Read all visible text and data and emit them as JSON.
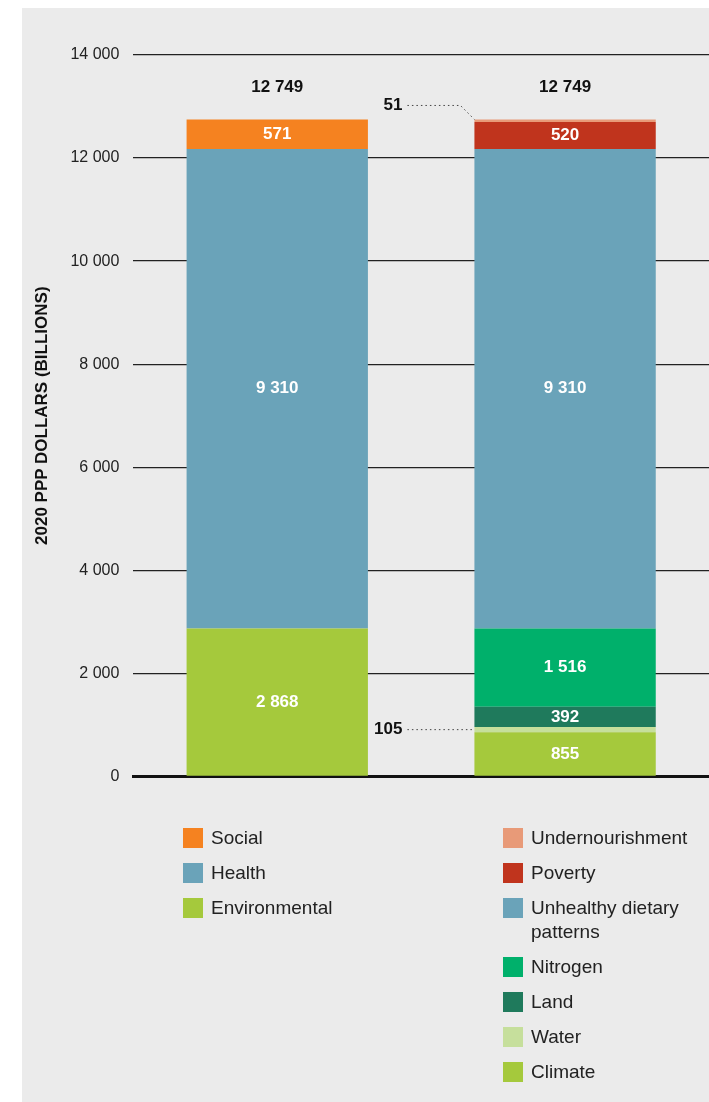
{
  "chart_data": {
    "type": "bar",
    "stacked": true,
    "ylabel": "2020 PPP DOLLARS (BILLIONS)",
    "categories": [
      null,
      null
    ],
    "ylim": [
      0,
      14000
    ],
    "yticks": [
      0,
      {
        "value": 2000,
        "label": "2 000"
      },
      {
        "value": 4000,
        "label": "4 000"
      },
      {
        "value": 6000,
        "label": "6 000"
      },
      {
        "value": 8000,
        "label": "8 000"
      },
      {
        "value": 10000,
        "label": "10 000"
      },
      {
        "value": 12000,
        "label": "12 000"
      },
      {
        "value": 14000,
        "label": "14 000"
      }
    ],
    "grid": "y",
    "legend": "bottom",
    "totals": [
      "12 749",
      "12 749"
    ],
    "series": [
      {
        "name": "Environmental",
        "color": "#a5c93c",
        "values": [
          2868,
          null
        ],
        "value_labels": [
          "2 868",
          null
        ]
      },
      {
        "name": "Health",
        "color": "#6aa3b9",
        "values": [
          9310,
          null
        ],
        "value_labels": [
          "9 310",
          null
        ]
      },
      {
        "name": "Social",
        "color": "#f58220",
        "values": [
          571,
          null
        ],
        "value_labels": [
          "571",
          null
        ]
      },
      {
        "name": "Climate",
        "color": "#a5c93c",
        "values": [
          null,
          855
        ],
        "value_labels": [
          null,
          "855"
        ]
      },
      {
        "name": "Water",
        "color": "#c6df9c",
        "values": [
          null,
          105
        ],
        "value_labels": [
          null,
          "105"
        ]
      },
      {
        "name": "Land",
        "color": "#1f7a5c",
        "values": [
          null,
          392
        ],
        "value_labels": [
          null,
          "392"
        ]
      },
      {
        "name": "Nitrogen",
        "color": "#00b06b",
        "values": [
          null,
          1516
        ],
        "value_labels": [
          null,
          "1 516"
        ]
      },
      {
        "name": "Unhealthy dietary patterns",
        "color": "#6aa3b9",
        "values": [
          null,
          9310
        ],
        "value_labels": [
          null,
          "9 310"
        ]
      },
      {
        "name": "Poverty",
        "color": "#c0341d",
        "values": [
          null,
          520
        ],
        "value_labels": [
          null,
          "520"
        ]
      },
      {
        "name": "Undernourishment",
        "color": "#e89a78",
        "values": [
          null,
          51
        ],
        "value_labels": [
          null,
          "51"
        ]
      }
    ]
  }
}
